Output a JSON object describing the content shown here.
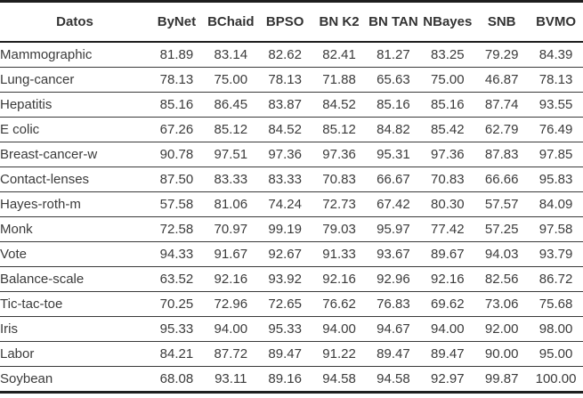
{
  "chart_data": {
    "type": "table",
    "columns": [
      "Datos",
      "ByNet",
      "BChaid",
      "BPSO",
      "BN K2",
      "BN TAN",
      "NBayes",
      "SNB",
      "BVMO"
    ],
    "rows": [
      {
        "name": "Mammographic",
        "values": [
          "81.89",
          "83.14",
          "82.62",
          "82.41",
          "81.27",
          "83.25",
          "79.29",
          "84.39"
        ]
      },
      {
        "name": "Lung-cancer",
        "values": [
          "78.13",
          "75.00",
          "78.13",
          "71.88",
          "65.63",
          "75.00",
          "46.87",
          "78.13"
        ]
      },
      {
        "name": "Hepatitis",
        "values": [
          "85.16",
          "86.45",
          "83.87",
          "84.52",
          "85.16",
          "85.16",
          "87.74",
          "93.55"
        ]
      },
      {
        "name": "E colic",
        "values": [
          "67.26",
          "85.12",
          "84.52",
          "85.12",
          "84.82",
          "85.42",
          "62.79",
          "76.49"
        ]
      },
      {
        "name": "Breast-cancer-w",
        "values": [
          "90.78",
          "97.51",
          "97.36",
          "97.36",
          "95.31",
          "97.36",
          "87.83",
          "97.85"
        ]
      },
      {
        "name": "Contact-lenses",
        "values": [
          "87.50",
          "83.33",
          "83.33",
          "70.83",
          "66.67",
          "70.83",
          "66.66",
          "95.83"
        ]
      },
      {
        "name": "Hayes-roth-m",
        "values": [
          "57.58",
          "81.06",
          "74.24",
          "72.73",
          "67.42",
          "80.30",
          "57.57",
          "84.09"
        ]
      },
      {
        "name": "Monk",
        "values": [
          "72.58",
          "70.97",
          "99.19",
          "79.03",
          "95.97",
          "77.42",
          "57.25",
          "97.58"
        ]
      },
      {
        "name": "Vote",
        "values": [
          "94.33",
          "91.67",
          "92.67",
          "91.33",
          "93.67",
          "89.67",
          "94.03",
          "93.79"
        ]
      },
      {
        "name": "Balance-scale",
        "values": [
          "63.52",
          "92.16",
          "93.92",
          "92.16",
          "92.96",
          "92.16",
          "82.56",
          "86.72"
        ]
      },
      {
        "name": "Tic-tac-toe",
        "values": [
          "70.25",
          "72.96",
          "72.65",
          "76.62",
          "76.83",
          "69.62",
          "73.06",
          "75.68"
        ]
      },
      {
        "name": "Iris",
        "values": [
          "95.33",
          "94.00",
          "95.33",
          "94.00",
          "94.67",
          "94.00",
          "92.00",
          "98.00"
        ]
      },
      {
        "name": "Labor",
        "values": [
          "84.21",
          "87.72",
          "89.47",
          "91.22",
          "89.47",
          "89.47",
          "90.00",
          "95.00"
        ]
      },
      {
        "name": "Soybean",
        "values": [
          "68.08",
          "93.11",
          "89.16",
          "94.58",
          "94.58",
          "92.97",
          "99.87",
          "100.00"
        ]
      }
    ]
  },
  "colors": {
    "background": "#ffffff",
    "text": "#3b3b3b",
    "border_heavy": "#1e1e1e",
    "border_light": "#3a3a3a"
  }
}
